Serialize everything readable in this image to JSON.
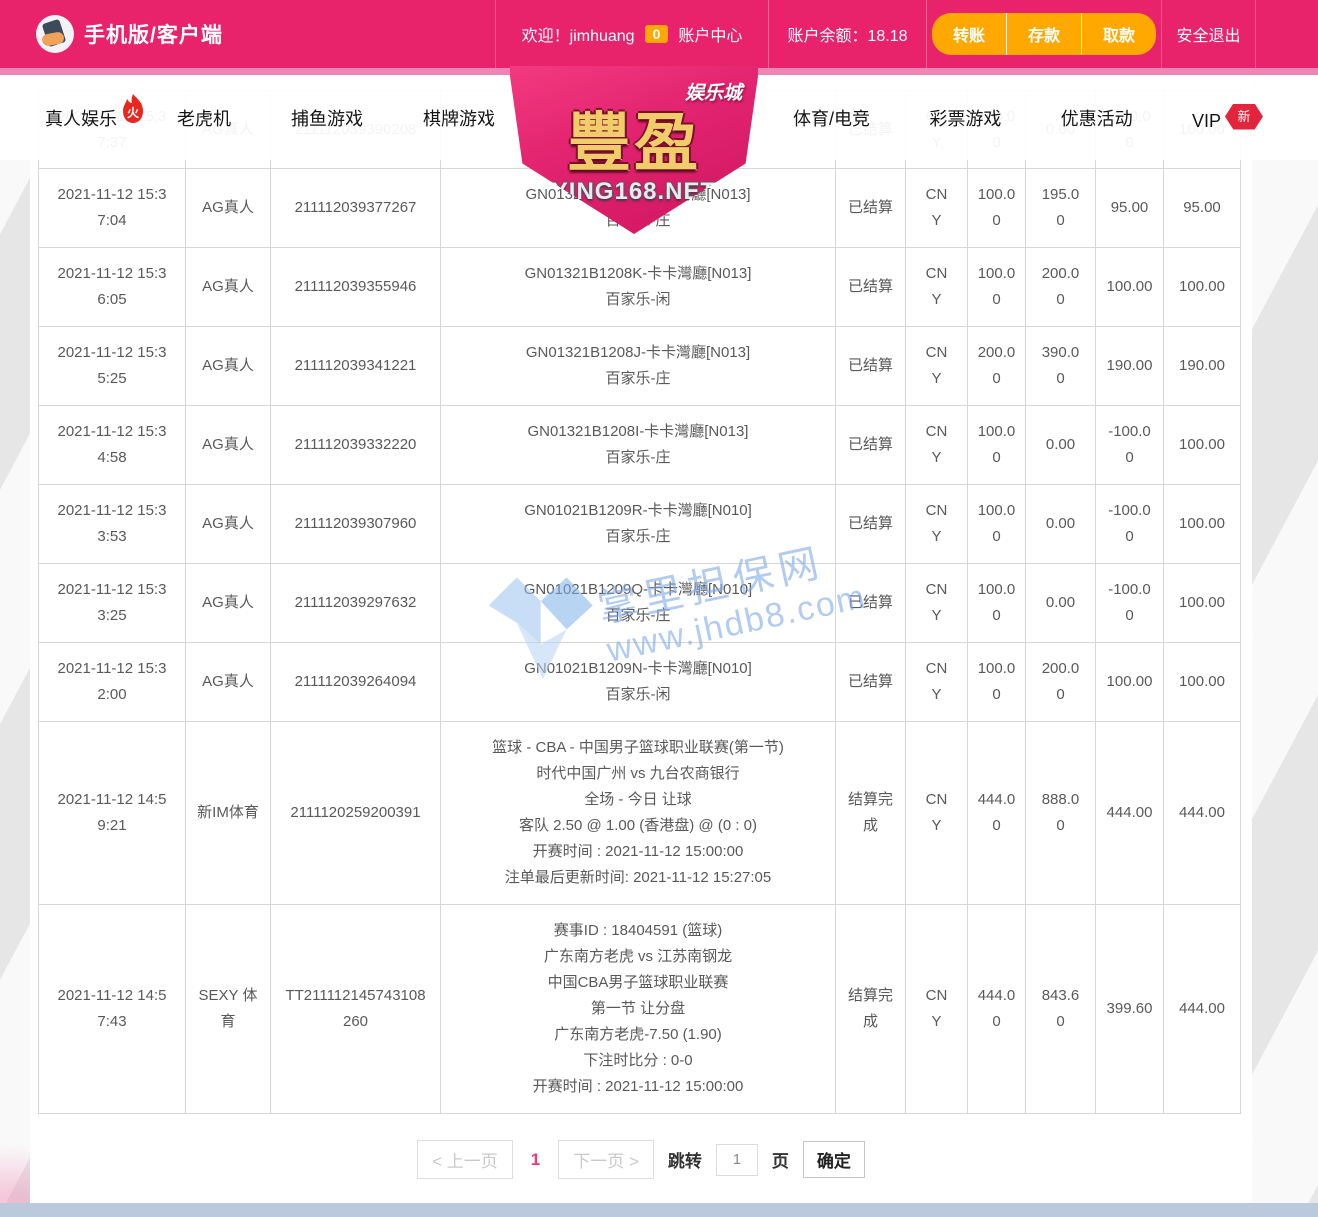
{
  "header": {
    "logo_title": "手机版/客户端",
    "welcome": "欢迎！jimhuang",
    "badge_count": "0",
    "account_center": "账户中心",
    "balance_label": "账户余额：",
    "balance_value": "18.18",
    "actions": [
      "转账",
      "存款",
      "取款"
    ],
    "logout": "安全退出"
  },
  "nav": {
    "left_items": [
      "真人娱乐",
      "老虎机",
      "捕鱼游戏",
      "棋牌游戏"
    ],
    "right_items": [
      "体育/电竞",
      "彩票游戏",
      "优惠活动",
      "VIP"
    ],
    "vip_badge": "新"
  },
  "brand": {
    "name": "豐盈",
    "tagline": "娱乐城",
    "domain": "YING168.NET"
  },
  "watermark": {
    "text_cn": "掌里担保网",
    "text_url": "www.jhdb8.com"
  },
  "table": {
    "rows": [
      {
        "time": "2021-11-12 15:37:37",
        "platform": "AG真人",
        "order_no": "211112039390208",
        "detail_lines": [],
        "status": "已结算",
        "currency": "CNY",
        "bet_amount": "100.00",
        "payout_amount": "0.00",
        "profit": "-100.00",
        "profit_color": "red",
        "valid_amount": "100.00"
      },
      {
        "time": "2021-11-12 15:37:04",
        "platform": "AG真人",
        "order_no": "211112039377267",
        "detail_lines": [
          "GN01321B1208L-卡卡灣廳[N013]",
          "百家乐-庄"
        ],
        "status": "已结算",
        "currency": "CNY",
        "bet_amount": "100.00",
        "payout_amount": "195.00",
        "profit": "95.00",
        "profit_color": "green",
        "valid_amount": "95.00"
      },
      {
        "time": "2021-11-12 15:36:05",
        "platform": "AG真人",
        "order_no": "211112039355946",
        "detail_lines": [
          "GN01321B1208K-卡卡灣廳[N013]",
          "百家乐-闲"
        ],
        "status": "已结算",
        "currency": "CNY",
        "bet_amount": "100.00",
        "payout_amount": "200.00",
        "profit": "100.00",
        "profit_color": "green",
        "valid_amount": "100.00"
      },
      {
        "time": "2021-11-12 15:35:25",
        "platform": "AG真人",
        "order_no": "211112039341221",
        "detail_lines": [
          "GN01321B1208J-卡卡灣廳[N013]",
          "百家乐-庄"
        ],
        "status": "已结算",
        "currency": "CNY",
        "bet_amount": "200.00",
        "payout_amount": "390.00",
        "profit": "190.00",
        "profit_color": "green",
        "valid_amount": "190.00"
      },
      {
        "time": "2021-11-12 15:34:58",
        "platform": "AG真人",
        "order_no": "211112039332220",
        "detail_lines": [
          "GN01321B1208I-卡卡灣廳[N013]",
          "百家乐-庄"
        ],
        "status": "已结算",
        "currency": "CNY",
        "bet_amount": "100.00",
        "payout_amount": "0.00",
        "profit": "-100.00",
        "profit_color": "red",
        "valid_amount": "100.00"
      },
      {
        "time": "2021-11-12 15:33:53",
        "platform": "AG真人",
        "order_no": "211112039307960",
        "detail_lines": [
          "GN01021B1209R-卡卡灣廳[N010]",
          "百家乐-庄"
        ],
        "status": "已结算",
        "currency": "CNY",
        "bet_amount": "100.00",
        "payout_amount": "0.00",
        "profit": "-100.00",
        "profit_color": "red",
        "valid_amount": "100.00"
      },
      {
        "time": "2021-11-12 15:33:25",
        "platform": "AG真人",
        "order_no": "211112039297632",
        "detail_lines": [
          "GN01021B1209Q-卡卡灣廳[N010]",
          "百家乐-庄"
        ],
        "status": "已结算",
        "currency": "CNY",
        "bet_amount": "100.00",
        "payout_amount": "0.00",
        "profit": "-100.00",
        "profit_color": "red",
        "valid_amount": "100.00"
      },
      {
        "time": "2021-11-12 15:32:00",
        "platform": "AG真人",
        "order_no": "211112039264094",
        "detail_lines": [
          "GN01021B1209N-卡卡灣廳[N010]",
          "百家乐-闲"
        ],
        "status": "已结算",
        "currency": "CNY",
        "bet_amount": "100.00",
        "payout_amount": "200.00",
        "profit": "100.00",
        "profit_color": "green",
        "valid_amount": "100.00"
      },
      {
        "time": "2021-11-12 14:59:21",
        "platform": "新IM体育",
        "order_no": "2111120259200391",
        "detail_lines": [
          "篮球 - CBA - 中国男子篮球职业联赛(第一节)",
          "时代中国广州 vs 九台农商银行",
          "全场 - 今日 让球",
          "客队 2.50 @ 1.00 (香港盘) @ (0 : 0)",
          "开赛时间 : 2021-11-12 15:00:00",
          "注单最后更新时间: 2021-11-12 15:27:05"
        ],
        "status": "结算完成",
        "currency": "CNY",
        "bet_amount": "444.00",
        "payout_amount": "888.00",
        "profit": "444.00",
        "profit_color": "green",
        "valid_amount": "444.00"
      },
      {
        "time": "2021-11-12 14:57:43",
        "platform": "SEXY 体育",
        "order_no": "TT211112145743108260",
        "detail_lines": [
          "赛事ID : 18404591 (篮球)",
          "广东南方老虎 vs 江苏南钢龙",
          "中国CBA男子篮球职业联赛",
          "第一节 让分盘",
          "广东南方老虎-7.50 (1.90)",
          "下注时比分 : 0-0",
          "开赛时间 : 2021-11-12 15:00:00"
        ],
        "status": "结算完成",
        "currency": "CNY",
        "bet_amount": "444.00",
        "payout_amount": "843.60",
        "profit": "399.60",
        "profit_color": "green",
        "valid_amount": "444.00"
      }
    ]
  },
  "pagination": {
    "prev_label": "< 上一页",
    "current_page": "1",
    "next_label": "下一页 >",
    "jump_label": "跳转",
    "jump_value": "1",
    "page_unit": "页",
    "confirm_label": "确定"
  },
  "colors": {
    "accent_pink": "#e8226b",
    "orange": "#ffa800",
    "profit_green": "#34bb8b",
    "loss_red": "#e12e2e"
  }
}
